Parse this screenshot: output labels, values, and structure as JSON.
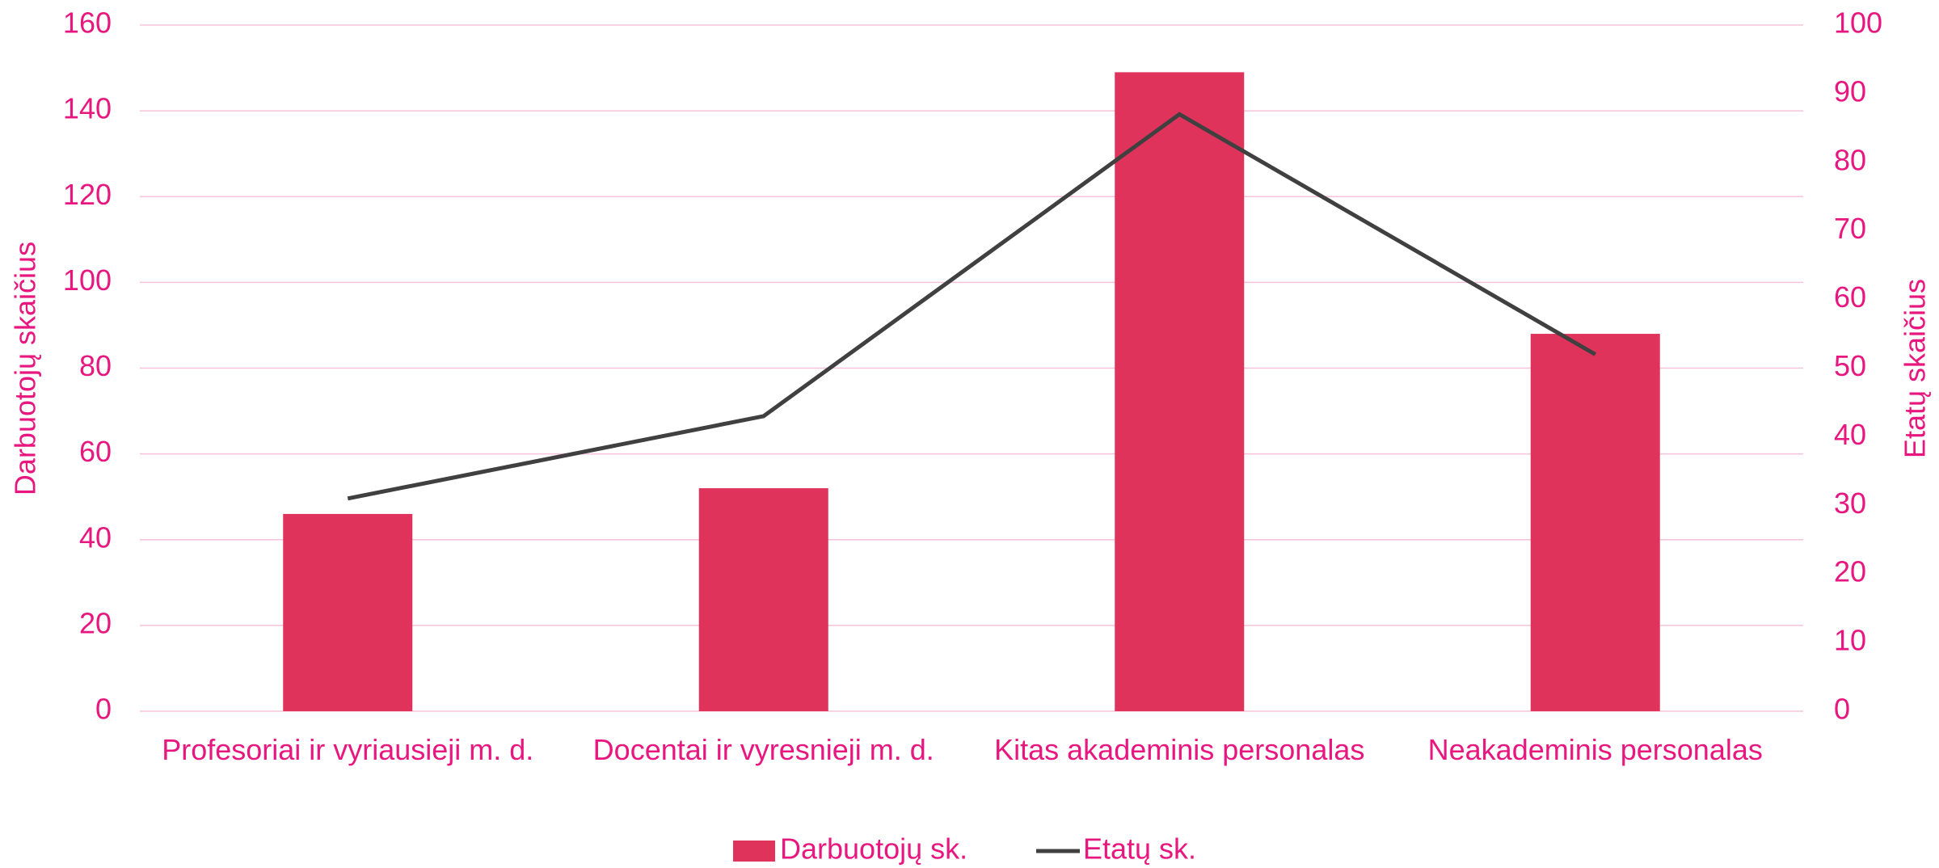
{
  "chart_data": {
    "type": "bar_line",
    "categories": [
      "Profesoriai ir vyriausieji m. d.",
      "Docentai ir vyresnieji m. d.",
      "Kitas akademinis personalas",
      "Neakademinis personalas"
    ],
    "series": [
      {
        "name": "Darbuotojų sk.",
        "type": "bar",
        "color": "#e0335b",
        "values": [
          46,
          52,
          149,
          88
        ]
      },
      {
        "name": "Etatų sk.",
        "type": "line",
        "color": "#404040",
        "axis": "y2",
        "values": [
          31,
          43,
          87,
          52
        ]
      }
    ],
    "ylabel": "Darbuotojų skaičius",
    "y2label": "Etatų skaičius",
    "ylim": [
      0,
      160
    ],
    "yticks": [
      0,
      20,
      40,
      60,
      80,
      100,
      120,
      140,
      160
    ],
    "y2lim": [
      0,
      100
    ],
    "y2ticks": [
      0,
      10,
      20,
      30,
      40,
      50,
      60,
      70,
      80,
      90,
      100
    ],
    "grid": true,
    "legend": "bottom"
  }
}
